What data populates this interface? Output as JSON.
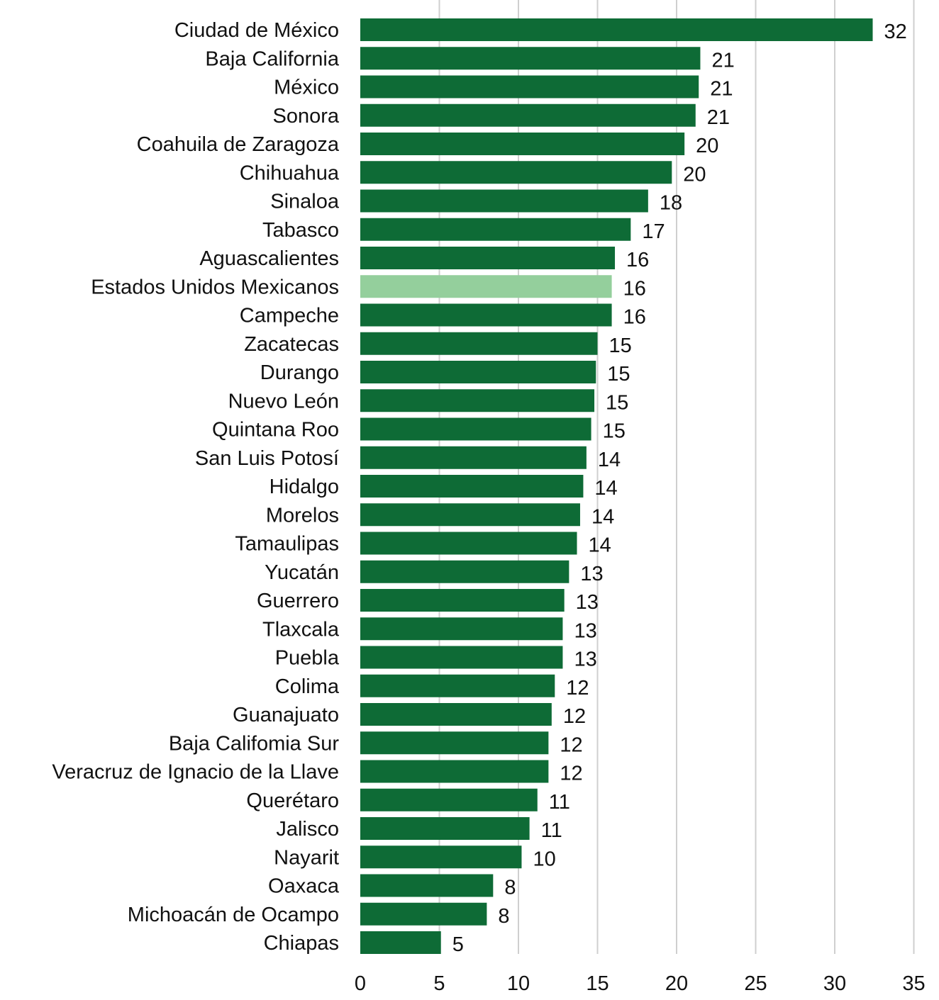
{
  "chart_data": {
    "type": "bar",
    "orientation": "horizontal",
    "categories": [
      "Ciudad de México",
      "Baja California",
      "México",
      "Sonora",
      "Coahuila de Zaragoza",
      "Chihuahua",
      "Sinaloa",
      "Tabasco",
      "Aguascalientes",
      "Estados Unidos Mexicanos",
      "Campeche",
      "Zacatecas",
      "Durango",
      "Nuevo León",
      "Quintana Roo",
      "San Luis Potosí",
      "Hidalgo",
      "Morelos",
      "Tamaulipas",
      "Yucatán",
      "Guerrero",
      "Tlaxcala",
      "Puebla",
      "Colima",
      "Guanajuato",
      "Baja Califomia Sur",
      "Veracruz de Ignacio de la Llave",
      "Querétaro",
      "Jalisco",
      "Nayarit",
      "Oaxaca",
      "Michoacán de Ocampo",
      "Chiapas"
    ],
    "values": [
      32.4,
      21.5,
      21.4,
      21.2,
      20.5,
      19.7,
      18.2,
      17.1,
      16.1,
      15.9,
      15.9,
      15.0,
      14.9,
      14.8,
      14.6,
      14.3,
      14.1,
      13.9,
      13.7,
      13.2,
      12.9,
      12.8,
      12.8,
      12.3,
      12.1,
      11.9,
      11.9,
      11.2,
      10.7,
      10.2,
      8.4,
      8.0,
      5.1
    ],
    "value_labels": [
      "32",
      "21",
      "21",
      "21",
      "20",
      "20",
      "18",
      "17",
      "16",
      "16",
      "16",
      "15",
      "15",
      "15",
      "15",
      "14",
      "14",
      "14",
      "14",
      "13",
      "13",
      "13",
      "13",
      "12",
      "12",
      "12",
      "12",
      "11",
      "11",
      "10",
      "8",
      "8",
      "5"
    ],
    "highlight": "Estados Unidos Mexicanos",
    "xlim": [
      0,
      35
    ],
    "xticks": [
      0,
      5,
      10,
      15,
      20,
      25,
      30,
      35
    ],
    "grid": "vertical",
    "legend": "none",
    "title": "",
    "xlabel": "",
    "ylabel": "",
    "colors": {
      "bar": "#0e6b36",
      "highlight": "#94cf9c",
      "grid": "#cfcfcf",
      "text": "#111111"
    }
  }
}
